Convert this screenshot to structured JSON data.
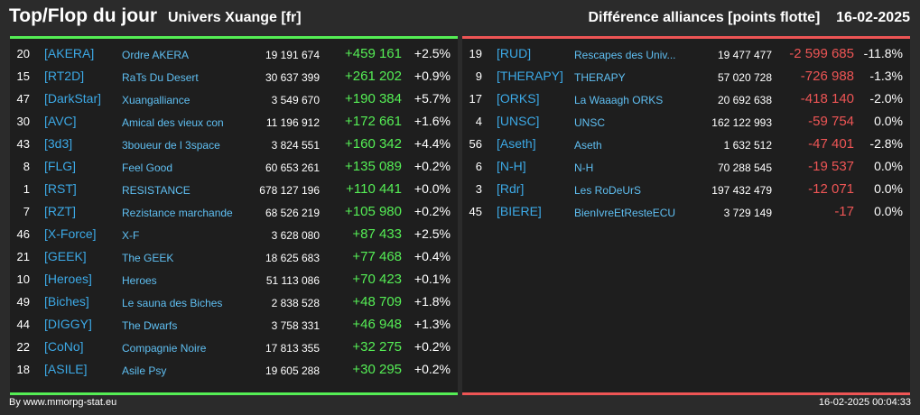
{
  "header": {
    "title": "Top/Flop du jour",
    "universe": "Univers Xuange [fr]",
    "category": "Différence alliances [points flotte]",
    "date": "16-02-2025"
  },
  "top": [
    {
      "rank": "20",
      "tag": "[AKERA]",
      "name": "Ordre AKERA",
      "points": "19 191 674",
      "diff": "+459 161",
      "pct": "+2.5%"
    },
    {
      "rank": "15",
      "tag": "[RT2D]",
      "name": "RaTs Du Desert",
      "points": "30 637 399",
      "diff": "+261 202",
      "pct": "+0.9%"
    },
    {
      "rank": "47",
      "tag": "[DarkStar]",
      "name": "Xuangalliance",
      "points": "3 549 670",
      "diff": "+190 384",
      "pct": "+5.7%"
    },
    {
      "rank": "30",
      "tag": "[AVC]",
      "name": "Amical des vieux con",
      "points": "11 196 912",
      "diff": "+172 661",
      "pct": "+1.6%"
    },
    {
      "rank": "43",
      "tag": "[3d3]",
      "name": "3boueur de l 3space",
      "points": "3 824 551",
      "diff": "+160 342",
      "pct": "+4.4%"
    },
    {
      "rank": "8",
      "tag": "[FLG]",
      "name": "Feel Good",
      "points": "60 653 261",
      "diff": "+135 089",
      "pct": "+0.2%"
    },
    {
      "rank": "1",
      "tag": "[RST]",
      "name": "RESISTANCE",
      "points": "678 127 196",
      "diff": "+110 441",
      "pct": "+0.0%"
    },
    {
      "rank": "7",
      "tag": "[RZT]",
      "name": "Rezistance marchande",
      "points": "68 526 219",
      "diff": "+105 980",
      "pct": "+0.2%"
    },
    {
      "rank": "46",
      "tag": "[X-Force]",
      "name": "X-F",
      "points": "3 628 080",
      "diff": "+87 433",
      "pct": "+2.5%"
    },
    {
      "rank": "21",
      "tag": "[GEEK]",
      "name": "The GEEK",
      "points": "18 625 683",
      "diff": "+77 468",
      "pct": "+0.4%"
    },
    {
      "rank": "10",
      "tag": "[Heroes]",
      "name": "Heroes",
      "points": "51 113 086",
      "diff": "+70 423",
      "pct": "+0.1%"
    },
    {
      "rank": "49",
      "tag": "[Biches]",
      "name": "Le sauna des Biches",
      "points": "2 838 528",
      "diff": "+48 709",
      "pct": "+1.8%"
    },
    {
      "rank": "44",
      "tag": "[DIGGY]",
      "name": "The Dwarfs",
      "points": "3 758 331",
      "diff": "+46 948",
      "pct": "+1.3%"
    },
    {
      "rank": "22",
      "tag": "[CoNo]",
      "name": "Compagnie Noire",
      "points": "17 813 355",
      "diff": "+32 275",
      "pct": "+0.2%"
    },
    {
      "rank": "18",
      "tag": "[ASILE]",
      "name": "Asile Psy",
      "points": "19 605 288",
      "diff": "+30 295",
      "pct": "+0.2%"
    }
  ],
  "flop": [
    {
      "rank": "19",
      "tag": "[RUD]",
      "name": "Rescapes des Univ...",
      "points": "19 477 477",
      "diff": "-2 599 685",
      "pct": "-11.8%"
    },
    {
      "rank": "9",
      "tag": "[THERAPY]",
      "name": "THERAPY",
      "points": "57 020 728",
      "diff": "-726 988",
      "pct": "-1.3%"
    },
    {
      "rank": "17",
      "tag": "[ORKS]",
      "name": "La Waaagh ORKS",
      "points": "20 692 638",
      "diff": "-418 140",
      "pct": "-2.0%"
    },
    {
      "rank": "4",
      "tag": "[UNSC]",
      "name": "UNSC",
      "points": "162 122 993",
      "diff": "-59 754",
      "pct": "0.0%"
    },
    {
      "rank": "56",
      "tag": "[Aseth]",
      "name": "Aseth",
      "points": "1 632 512",
      "diff": "-47 401",
      "pct": "-2.8%"
    },
    {
      "rank": "6",
      "tag": "[N-H]",
      "name": "N-H",
      "points": "70 288 545",
      "diff": "-19 537",
      "pct": "0.0%"
    },
    {
      "rank": "3",
      "tag": "[Rdr]",
      "name": "Les RoDeUrS",
      "points": "197 432 479",
      "diff": "-12 071",
      "pct": "0.0%"
    },
    {
      "rank": "45",
      "tag": "[BIERE]",
      "name": "BienIvreEtResteECU",
      "points": "3 729 149",
      "diff": "-17",
      "pct": "0.0%"
    }
  ],
  "footer": {
    "source": "By www.mmorpg-stat.eu",
    "timestamp": "16-02-2025 00:04:33"
  },
  "colors": {
    "positive": "#55ee55",
    "negative": "#ee5555",
    "tag": "#3ca9e6",
    "name": "#5fbff2"
  }
}
